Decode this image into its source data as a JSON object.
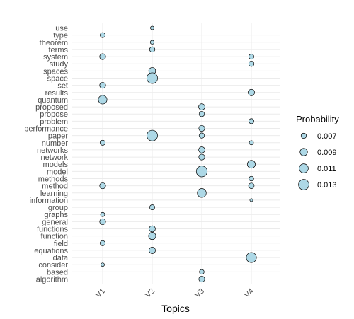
{
  "chart_data": {
    "type": "scatter",
    "xlabel": "Topics",
    "ylabel": "",
    "x_categories": [
      "V1",
      "V2",
      "V3",
      "V4"
    ],
    "y_categories": [
      "algorithm",
      "based",
      "consider",
      "data",
      "equations",
      "field",
      "function",
      "functions",
      "general",
      "graphs",
      "group",
      "information",
      "learning",
      "method",
      "methods",
      "model",
      "models",
      "network",
      "networks",
      "number",
      "paper",
      "performance",
      "problem",
      "propose",
      "proposed",
      "quantum",
      "results",
      "set",
      "space",
      "spaces",
      "study",
      "system",
      "terms",
      "theorem",
      "type",
      "use"
    ],
    "size_range": [
      0.005,
      0.015
    ],
    "points": [
      {
        "topic": "V1",
        "term": "type",
        "probability": 0.0068
      },
      {
        "topic": "V1",
        "term": "system",
        "probability": 0.0075
      },
      {
        "topic": "V1",
        "term": "set",
        "probability": 0.0075
      },
      {
        "topic": "V1",
        "term": "quantum",
        "probability": 0.0105
      },
      {
        "topic": "V1",
        "term": "number",
        "probability": 0.0068
      },
      {
        "topic": "V1",
        "term": "method",
        "probability": 0.0075
      },
      {
        "topic": "V1",
        "term": "graphs",
        "probability": 0.0062
      },
      {
        "topic": "V1",
        "term": "general",
        "probability": 0.0075
      },
      {
        "topic": "V1",
        "term": "field",
        "probability": 0.0068
      },
      {
        "topic": "V1",
        "term": "consider",
        "probability": 0.0058
      },
      {
        "topic": "V2",
        "term": "use",
        "probability": 0.0058
      },
      {
        "topic": "V2",
        "term": "theorem",
        "probability": 0.006
      },
      {
        "topic": "V2",
        "term": "terms",
        "probability": 0.007
      },
      {
        "topic": "V2",
        "term": "spaces",
        "probability": 0.0085
      },
      {
        "topic": "V2",
        "term": "space",
        "probability": 0.0135
      },
      {
        "topic": "V2",
        "term": "paper",
        "probability": 0.0135
      },
      {
        "topic": "V2",
        "term": "group",
        "probability": 0.0068
      },
      {
        "topic": "V2",
        "term": "functions",
        "probability": 0.0078
      },
      {
        "topic": "V2",
        "term": "function",
        "probability": 0.0088
      },
      {
        "topic": "V2",
        "term": "equations",
        "probability": 0.008
      },
      {
        "topic": "V3",
        "term": "proposed",
        "probability": 0.0078
      },
      {
        "topic": "V3",
        "term": "propose",
        "probability": 0.007
      },
      {
        "topic": "V3",
        "term": "performance",
        "probability": 0.0075
      },
      {
        "topic": "V3",
        "term": "paper",
        "probability": 0.007
      },
      {
        "topic": "V3",
        "term": "networks",
        "probability": 0.0078
      },
      {
        "topic": "V3",
        "term": "network",
        "probability": 0.0075
      },
      {
        "topic": "V3",
        "term": "model",
        "probability": 0.0138
      },
      {
        "topic": "V3",
        "term": "learning",
        "probability": 0.0108
      },
      {
        "topic": "V3",
        "term": "based",
        "probability": 0.0065
      },
      {
        "topic": "V3",
        "term": "algorithm",
        "probability": 0.0075
      },
      {
        "topic": "V4",
        "term": "system",
        "probability": 0.0068
      },
      {
        "topic": "V4",
        "term": "study",
        "probability": 0.007
      },
      {
        "topic": "V4",
        "term": "results",
        "probability": 0.008
      },
      {
        "topic": "V4",
        "term": "problem",
        "probability": 0.0068
      },
      {
        "topic": "V4",
        "term": "number",
        "probability": 0.0062
      },
      {
        "topic": "V4",
        "term": "models",
        "probability": 0.0095
      },
      {
        "topic": "V4",
        "term": "methods",
        "probability": 0.0065
      },
      {
        "topic": "V4",
        "term": "method",
        "probability": 0.0072
      },
      {
        "topic": "V4",
        "term": "information",
        "probability": 0.0055
      },
      {
        "topic": "V4",
        "term": "data",
        "probability": 0.0125
      }
    ],
    "legend": {
      "title": "Probability",
      "placement": "right",
      "entries": [
        {
          "label": "0.007",
          "value": 0.007
        },
        {
          "label": "0.009",
          "value": 0.009
        },
        {
          "label": "0.011",
          "value": 0.011
        },
        {
          "label": "0.013",
          "value": 0.013
        }
      ]
    },
    "grid": true,
    "point_fill": "#add8e6",
    "point_stroke": "#000000",
    "grid_color": "#ebebeb",
    "tick_label_rotation": "45 degrees (x axis)"
  }
}
